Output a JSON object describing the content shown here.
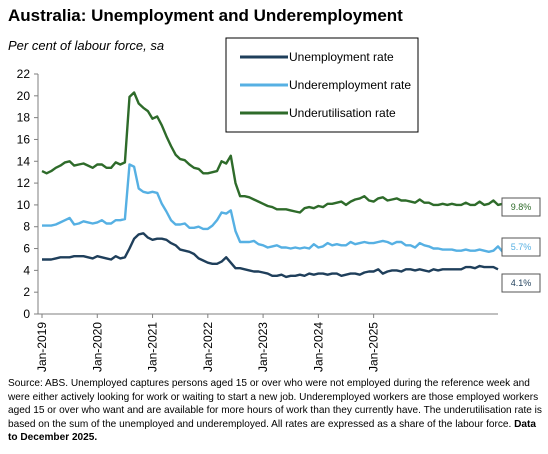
{
  "header": {
    "title": "Australia: Unemployment and Underemployment",
    "subtitle": "Per cent of labour force, sa"
  },
  "footnote": {
    "text": "Source: ABS. Unemployed captures persons aged 15 or over who were not employed during the reference week and were either actively looking for work or waiting to start a new job.  Underemployed workers are those employed workers aged 15 or over who want and are available for more hours of work than they currently have. The underutilisation rate is based on the sum of the unemployed and underemployed. All rates are expressed as a share of the labour force. ",
    "bold": "Data to December 2025."
  },
  "chart_data": {
    "type": "line",
    "x_start": "Jan-2019",
    "x_end": "Dec-2025",
    "ylim": [
      0,
      22
    ],
    "yticks": [
      0,
      2,
      4,
      6,
      8,
      10,
      12,
      14,
      16,
      18,
      20,
      22
    ],
    "xticks": [
      "Jan-2019",
      "Jan-2020",
      "Jan-2021",
      "Jan-2022",
      "Jan-2023",
      "Jan-2024",
      "Jan-2025"
    ],
    "grid": false,
    "legend_position": "top-right",
    "series": [
      {
        "name": "Unemployment rate",
        "color": "#1f3f5b",
        "end_label": "4.1%",
        "values": [
          5.0,
          5.0,
          5.0,
          5.1,
          5.2,
          5.2,
          5.2,
          5.3,
          5.3,
          5.3,
          5.2,
          5.1,
          5.3,
          5.2,
          5.1,
          5.0,
          5.3,
          5.1,
          5.2,
          6.0,
          6.9,
          7.3,
          7.4,
          7.0,
          6.8,
          6.9,
          6.9,
          6.8,
          6.5,
          6.3,
          5.9,
          5.8,
          5.7,
          5.5,
          5.1,
          4.9,
          4.7,
          4.6,
          4.6,
          4.8,
          5.2,
          4.7,
          4.2,
          4.2,
          4.1,
          4.0,
          3.9,
          3.9,
          3.8,
          3.7,
          3.5,
          3.5,
          3.6,
          3.4,
          3.5,
          3.5,
          3.6,
          3.5,
          3.7,
          3.6,
          3.7,
          3.7,
          3.6,
          3.7,
          3.7,
          3.5,
          3.6,
          3.7,
          3.7,
          3.6,
          3.8,
          3.9,
          3.9,
          4.1,
          3.7,
          3.9,
          4.0,
          4.0,
          3.9,
          4.1,
          4.1,
          4.0,
          4.1,
          4.0,
          3.9,
          4.1,
          4.0,
          4.1,
          4.1,
          4.1,
          4.1,
          4.1,
          4.3,
          4.3,
          4.2,
          4.4,
          4.3,
          4.3,
          4.3,
          4.1
        ]
      },
      {
        "name": "Underemployment rate",
        "color": "#56b0e3",
        "end_label": "5.7%",
        "values": [
          8.1,
          8.1,
          8.1,
          8.2,
          8.4,
          8.6,
          8.8,
          8.2,
          8.3,
          8.5,
          8.4,
          8.3,
          8.4,
          8.6,
          8.3,
          8.3,
          8.6,
          8.6,
          8.7,
          13.7,
          13.5,
          11.5,
          11.2,
          11.1,
          11.2,
          11.1,
          10.1,
          9.4,
          8.6,
          8.2,
          8.2,
          8.3,
          7.9,
          7.9,
          8.0,
          7.8,
          7.8,
          8.1,
          8.6,
          9.3,
          9.2,
          9.5,
          7.6,
          6.6,
          6.6,
          6.6,
          6.7,
          6.4,
          6.3,
          6.1,
          6.2,
          6.3,
          6.1,
          6.1,
          6.0,
          6.1,
          6.0,
          6.1,
          6.0,
          6.4,
          6.1,
          6.2,
          6.5,
          6.3,
          6.4,
          6.3,
          6.3,
          6.6,
          6.4,
          6.5,
          6.6,
          6.5,
          6.5,
          6.6,
          6.7,
          6.6,
          6.4,
          6.6,
          6.6,
          6.3,
          6.3,
          6.1,
          6.5,
          6.3,
          6.2,
          6.0,
          6.0,
          5.9,
          5.9,
          5.9,
          5.8,
          5.8,
          5.9,
          5.8,
          5.8,
          5.9,
          5.8,
          5.7,
          5.8,
          6.2,
          5.7
        ]
      },
      {
        "name": "Underutilisation rate",
        "color": "#2e6b2a",
        "end_label": "9.8%",
        "values": [
          13.1,
          12.9,
          13.1,
          13.4,
          13.6,
          13.9,
          14.0,
          13.6,
          13.7,
          13.8,
          13.6,
          13.4,
          13.7,
          13.7,
          13.4,
          13.4,
          13.9,
          13.7,
          13.9,
          19.9,
          20.3,
          19.3,
          18.9,
          18.6,
          17.9,
          18.1,
          17.3,
          16.3,
          15.4,
          14.6,
          14.2,
          14.1,
          13.7,
          13.4,
          13.3,
          12.9,
          12.9,
          13.0,
          13.1,
          14.0,
          13.8,
          14.5,
          12.0,
          10.8,
          10.8,
          10.7,
          10.5,
          10.3,
          10.1,
          9.9,
          9.8,
          9.6,
          9.6,
          9.6,
          9.5,
          9.4,
          9.3,
          9.7,
          9.8,
          9.7,
          9.9,
          9.8,
          10.1,
          10.1,
          10.2,
          10.3,
          10.0,
          10.3,
          10.5,
          10.6,
          10.8,
          10.4,
          10.3,
          10.6,
          10.7,
          10.4,
          10.5,
          10.6,
          10.4,
          10.4,
          10.3,
          10.2,
          10.5,
          10.2,
          10.2,
          10.0,
          10.0,
          10.1,
          10.0,
          10.1,
          10.0,
          10.0,
          10.2,
          10.0,
          10.0,
          10.3,
          10.0,
          10.1,
          10.4,
          10.0,
          10.1,
          9.8
        ]
      }
    ]
  }
}
